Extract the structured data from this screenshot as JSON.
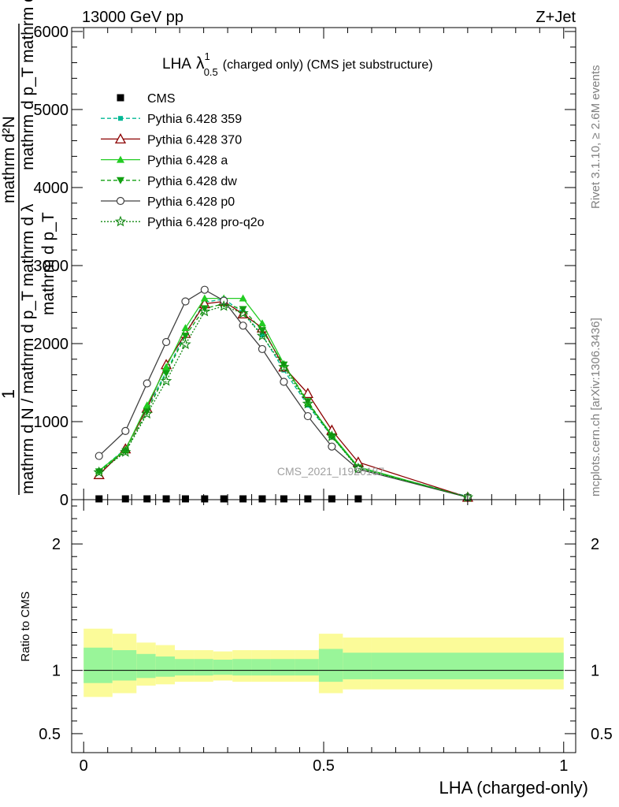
{
  "header": {
    "left": "13000 GeV pp",
    "right": "Z+Jet"
  },
  "side_labels": {
    "rivet": "Rivet 3.1.10, ≥ 2.6M events",
    "mcplots": "mcplots.cern.ch [arXiv:1306.3436]"
  },
  "watermark": "CMS_2021_I1920187",
  "chart_data": [
    {
      "type": "line",
      "title": "LHA",
      "title_symbol": "λ",
      "title_sup": "1",
      "title_sub": "0.5",
      "title_suffix": "(charged only) (CMS jet substructure)",
      "ylabel_top": "1",
      "ylabel_num": "mathrm d²N",
      "ylabel_den": "mathrm d N / mathrm d p_T mathrm d λ",
      "ylabel_frac_den": "mathrm d p_T mathrm d lambda",
      "ylabel_aux": "mathrm d p_T",
      "xlim": [
        -0.025,
        1.025
      ],
      "ylim": [
        0,
        6050
      ],
      "yticks": [
        0,
        1000,
        2000,
        3000,
        4000,
        5000,
        6000
      ],
      "ytick_labels": [
        "0",
        "1000",
        "2000",
        "3000",
        "4000",
        "5000",
        "6000"
      ],
      "x": [
        0.032,
        0.087,
        0.132,
        0.172,
        0.212,
        0.252,
        0.292,
        0.332,
        0.372,
        0.417,
        0.467,
        0.517,
        0.572,
        0.8
      ],
      "series": [
        {
          "name": "CMS",
          "marker": "square",
          "color": "#000000",
          "dash": "",
          "values": [
            0,
            0,
            0,
            0,
            0,
            0,
            0,
            0,
            0,
            0,
            0,
            0,
            0,
            null
          ]
        },
        {
          "name": "Pythia 6.428 359",
          "marker": "smallsquare",
          "color": "#00b894",
          "dash": "5,3",
          "values": [
            370,
            650,
            1170,
            1640,
            2130,
            2530,
            2570,
            2400,
            2110,
            1660,
            1210,
            810,
            410,
            40
          ]
        },
        {
          "name": "Pythia 6.428 370",
          "marker": "triangle-open",
          "color": "#8b0000",
          "dash": "",
          "values": [
            320,
            650,
            1170,
            1730,
            2130,
            2510,
            2540,
            2380,
            2200,
            1700,
            1360,
            890,
            480,
            30
          ]
        },
        {
          "name": "Pythia 6.428 a",
          "marker": "triangle",
          "color": "#22cc22",
          "dash": "",
          "values": [
            370,
            640,
            1210,
            1700,
            2200,
            2580,
            2580,
            2580,
            2260,
            1740,
            1240,
            830,
            420,
            30
          ]
        },
        {
          "name": "Pythia 6.428 dw",
          "marker": "triangle-down",
          "color": "#11a011",
          "dash": "5,3",
          "values": [
            360,
            620,
            1130,
            1620,
            2100,
            2450,
            2510,
            2440,
            2170,
            1730,
            1260,
            810,
            410,
            30
          ]
        },
        {
          "name": "Pythia 6.428 p0",
          "marker": "circle",
          "color": "#404040",
          "dash": "",
          "values": [
            560,
            880,
            1490,
            2020,
            2540,
            2690,
            2550,
            2230,
            1930,
            1510,
            1070,
            680,
            390,
            30
          ]
        },
        {
          "name": "Pythia 6.428 pro-q2o",
          "marker": "star",
          "color": "#118811",
          "dash": "2,2",
          "values": [
            350,
            610,
            1100,
            1520,
            1990,
            2410,
            2480,
            2390,
            2100,
            1700,
            1230,
            810,
            400,
            30
          ]
        }
      ]
    },
    {
      "type": "area",
      "ylabel": "Ratio to CMS",
      "xlabel": "LHA (charged-only)",
      "xlim": [
        -0.025,
        1.025
      ],
      "ylim": [
        0.35,
        2.35
      ],
      "yticks": [
        0.5,
        1,
        2
      ],
      "ytick_labels": [
        "0.5",
        "1",
        "2"
      ],
      "xticks": [
        0,
        0.5,
        1
      ],
      "xtick_labels": [
        "0",
        "0.5",
        "1"
      ],
      "bin_edges": [
        0,
        0.06,
        0.11,
        0.15,
        0.19,
        0.23,
        0.27,
        0.31,
        0.35,
        0.39,
        0.44,
        0.49,
        0.54,
        0.6,
        1.0
      ],
      "band_inner_lo": [
        0.9,
        0.92,
        0.94,
        0.95,
        0.96,
        0.96,
        0.965,
        0.96,
        0.96,
        0.96,
        0.96,
        0.91,
        0.93,
        0.93
      ],
      "band_inner_hi": [
        1.18,
        1.16,
        1.13,
        1.11,
        1.09,
        1.09,
        1.085,
        1.09,
        1.09,
        1.09,
        1.09,
        1.17,
        1.14,
        1.14
      ],
      "band_outer_lo": [
        0.79,
        0.82,
        0.88,
        0.89,
        0.91,
        0.91,
        0.92,
        0.91,
        0.91,
        0.91,
        0.91,
        0.82,
        0.85,
        0.85
      ],
      "band_outer_hi": [
        1.33,
        1.29,
        1.22,
        1.2,
        1.16,
        1.16,
        1.15,
        1.16,
        1.16,
        1.16,
        1.16,
        1.29,
        1.26,
        1.26
      ],
      "reference": 1.0,
      "band_inner_color": "#99f599",
      "band_outer_color": "#fbfb99"
    }
  ]
}
